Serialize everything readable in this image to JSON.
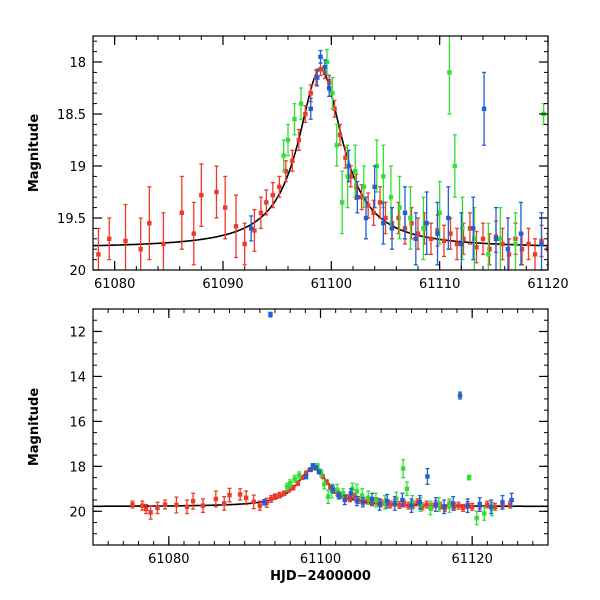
{
  "chart_data": [
    {
      "type": "scatter",
      "name": "zoomed-light-curve",
      "ylabel": "Magnitude",
      "xlabel": "",
      "xlim": [
        61078,
        61120
      ],
      "ylim": [
        17.75,
        20.0
      ],
      "y_inverted": true,
      "x_ticks": [
        61080,
        61090,
        61100,
        61110,
        61120
      ],
      "y_ticks": [
        18,
        18.5,
        19,
        19.5,
        20
      ],
      "x_tick_labels": [
        "61080",
        "61090",
        "61100",
        "61110",
        "61120"
      ],
      "y_tick_labels": [
        "18",
        "18.5",
        "19",
        "19.5",
        "20"
      ],
      "model": {
        "baseline": 19.79,
        "peak": 18.07,
        "t0": 61099.0,
        "width": 2.5
      }
    },
    {
      "type": "scatter",
      "name": "full-light-curve",
      "ylabel": "Magnitude",
      "xlabel": "HJD−2400000",
      "xlim": [
        61070,
        61130
      ],
      "ylim": [
        11.0,
        21.5
      ],
      "y_inverted": true,
      "x_ticks": [
        61080,
        61100,
        61120
      ],
      "y_ticks": [
        12,
        14,
        16,
        18,
        20
      ],
      "x_tick_labels": [
        "61080",
        "61100",
        "61120"
      ],
      "y_tick_labels": [
        "12",
        "14",
        "16",
        "18",
        "20"
      ],
      "model": {
        "baseline": 19.79,
        "peak": 18.07,
        "t0": 61099.0,
        "width": 2.5
      }
    }
  ],
  "series": [
    {
      "name": "red",
      "color": "#ee3a2a",
      "points": [
        [
          61075.2,
          19.7,
          0.15
        ],
        [
          61076.5,
          19.75,
          0.2
        ],
        [
          61077.0,
          19.9,
          0.2
        ],
        [
          61077.6,
          20.05,
          0.3
        ],
        [
          61078.5,
          19.85,
          0.25
        ],
        [
          61079.5,
          19.7,
          0.2
        ],
        [
          61081.0,
          19.72,
          0.35
        ],
        [
          61082.4,
          19.8,
          0.3
        ],
        [
          61083.2,
          19.55,
          0.35
        ],
        [
          61084.5,
          19.75,
          0.3
        ],
        [
          61086.2,
          19.45,
          0.35
        ],
        [
          61087.3,
          19.65,
          0.3
        ],
        [
          61088.0,
          19.28,
          0.3
        ],
        [
          61089.4,
          19.25,
          0.25
        ],
        [
          61090.2,
          19.4,
          0.3
        ],
        [
          61091.2,
          19.58,
          0.3
        ],
        [
          61092.0,
          19.75,
          0.2
        ],
        [
          61092.9,
          19.62,
          0.2
        ],
        [
          61093.5,
          19.45,
          0.15
        ],
        [
          61094.0,
          19.35,
          0.12
        ],
        [
          61094.6,
          19.28,
          0.12
        ],
        [
          61095.2,
          19.2,
          0.1
        ],
        [
          61095.8,
          19.05,
          0.1
        ],
        [
          61096.4,
          18.95,
          0.1
        ],
        [
          61097.0,
          18.75,
          0.1
        ],
        [
          61097.6,
          18.5,
          0.08
        ],
        [
          61098.1,
          18.3,
          0.08
        ],
        [
          61098.6,
          18.15,
          0.07
        ],
        [
          61099.0,
          18.07,
          0.06
        ],
        [
          61099.4,
          18.1,
          0.06
        ],
        [
          61099.8,
          18.2,
          0.07
        ],
        [
          61100.3,
          18.45,
          0.08
        ],
        [
          61100.8,
          18.7,
          0.1
        ],
        [
          61101.3,
          18.92,
          0.1
        ],
        [
          61101.8,
          19.1,
          0.1
        ],
        [
          61102.3,
          19.2,
          0.12
        ],
        [
          61102.8,
          19.3,
          0.12
        ],
        [
          61103.4,
          19.38,
          0.12
        ],
        [
          61103.9,
          19.45,
          0.12
        ],
        [
          61104.5,
          19.35,
          0.15
        ],
        [
          61105.0,
          19.5,
          0.15
        ],
        [
          61105.6,
          19.55,
          0.15
        ],
        [
          61106.2,
          19.5,
          0.15
        ],
        [
          61106.8,
          19.6,
          0.15
        ],
        [
          61107.4,
          19.55,
          0.15
        ],
        [
          61108.0,
          19.65,
          0.15
        ],
        [
          61108.6,
          19.6,
          0.15
        ],
        [
          61109.2,
          19.7,
          0.15
        ],
        [
          61109.8,
          19.62,
          0.15
        ],
        [
          61110.4,
          19.72,
          0.15
        ],
        [
          61111.0,
          19.65,
          0.15
        ],
        [
          61111.6,
          19.75,
          0.15
        ],
        [
          61112.2,
          19.7,
          0.15
        ],
        [
          61112.8,
          19.6,
          0.15
        ],
        [
          61113.4,
          19.78,
          0.15
        ],
        [
          61114.0,
          19.7,
          0.15
        ],
        [
          61114.6,
          19.8,
          0.15
        ],
        [
          61115.2,
          19.68,
          0.15
        ],
        [
          61115.8,
          19.75,
          0.15
        ],
        [
          61116.4,
          19.85,
          0.15
        ],
        [
          61117.0,
          19.7,
          0.15
        ],
        [
          61117.6,
          19.8,
          0.15
        ],
        [
          61118.2,
          19.75,
          0.15
        ],
        [
          61118.8,
          19.85,
          0.15
        ],
        [
          61119.4,
          19.72,
          0.15
        ],
        [
          61120.0,
          19.8,
          0.15
        ],
        [
          61121.0,
          19.75,
          0.15
        ],
        [
          61122.0,
          19.7,
          0.15
        ],
        [
          61123.0,
          19.8,
          0.15
        ],
        [
          61124.0,
          19.75,
          0.15
        ],
        [
          61125.0,
          19.7,
          0.15
        ]
      ]
    },
    {
      "name": "green",
      "color": "#33e033",
      "points": [
        [
          61095.6,
          18.9,
          0.15
        ],
        [
          61096.0,
          18.75,
          0.15
        ],
        [
          61096.6,
          18.55,
          0.15
        ],
        [
          61097.2,
          18.4,
          0.15
        ],
        [
          61099.6,
          18.0,
          0.12
        ],
        [
          61100.1,
          18.3,
          0.15
        ],
        [
          61100.5,
          18.8,
          0.2
        ],
        [
          61101.0,
          19.35,
          0.3
        ],
        [
          61101.5,
          19.1,
          0.3
        ],
        [
          61102.2,
          19.05,
          0.25
        ],
        [
          61103.0,
          19.2,
          0.2
        ],
        [
          61104.2,
          19.0,
          0.25
        ],
        [
          61104.8,
          19.1,
          0.3
        ],
        [
          61105.5,
          19.3,
          0.3
        ],
        [
          61106.3,
          19.4,
          0.3
        ],
        [
          61107.3,
          19.5,
          0.3
        ],
        [
          61108.5,
          19.6,
          0.3
        ],
        [
          61110.0,
          19.45,
          0.3
        ],
        [
          61110.9,
          18.1,
          0.4
        ],
        [
          61111.4,
          19.0,
          0.3
        ],
        [
          61112.1,
          19.6,
          0.3
        ],
        [
          61113.2,
          19.7,
          0.3
        ],
        [
          61114.5,
          19.85,
          0.3
        ],
        [
          61115.6,
          19.7,
          0.3
        ],
        [
          61117.0,
          19.75,
          0.3
        ],
        [
          61119.6,
          18.5,
          0.1
        ],
        [
          61120.6,
          20.3,
          0.3
        ],
        [
          61121.6,
          20.1,
          0.3
        ],
        [
          61122.6,
          19.9,
          0.3
        ]
      ]
    },
    {
      "name": "blue",
      "color": "#1f5fd6",
      "points": [
        [
          61092.6,
          19.6,
          0.12
        ],
        [
          61098.1,
          18.45,
          0.1
        ],
        [
          61098.7,
          18.15,
          0.08
        ],
        [
          61099.0,
          17.95,
          0.06
        ],
        [
          61099.4,
          18.05,
          0.07
        ],
        [
          61099.8,
          18.25,
          0.08
        ],
        [
          61101.6,
          19.0,
          0.15
        ],
        [
          61102.4,
          19.3,
          0.15
        ],
        [
          61103.2,
          19.5,
          0.2
        ],
        [
          61104.0,
          19.2,
          0.2
        ],
        [
          61104.8,
          19.55,
          0.2
        ],
        [
          61105.6,
          19.6,
          0.2
        ],
        [
          61106.8,
          19.45,
          0.25
        ],
        [
          61107.8,
          19.7,
          0.25
        ],
        [
          61108.8,
          19.55,
          0.3
        ],
        [
          61109.8,
          19.65,
          0.3
        ],
        [
          61110.8,
          19.5,
          0.3
        ],
        [
          61112.0,
          19.75,
          0.3
        ],
        [
          61113.1,
          19.6,
          0.3
        ],
        [
          61114.1,
          18.45,
          0.35
        ],
        [
          61115.2,
          19.7,
          0.3
        ],
        [
          61116.3,
          19.8,
          0.3
        ],
        [
          61117.5,
          19.65,
          0.3
        ],
        [
          61118.4,
          14.85,
          0.15
        ],
        [
          61093.4,
          11.25,
          0.1
        ],
        [
          61119.4,
          19.75,
          0.3
        ],
        [
          61121.0,
          19.7,
          0.3
        ],
        [
          61122.5,
          19.8,
          0.3
        ],
        [
          61124.0,
          19.6,
          0.3
        ],
        [
          61125.2,
          19.5,
          0.3
        ]
      ]
    }
  ]
}
